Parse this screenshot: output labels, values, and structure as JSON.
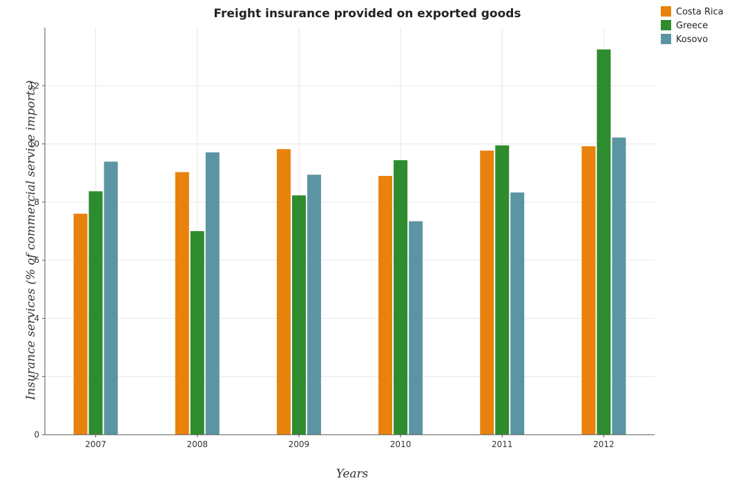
{
  "chart_data": {
    "type": "bar",
    "title": "Freight insurance provided on exported goods",
    "xlabel": "Years",
    "ylabel": "Insurance services (% of commercial service imports)",
    "categories": [
      "2007",
      "2008",
      "2009",
      "2010",
      "2011",
      "2012"
    ],
    "series": [
      {
        "name": "Costa Rica",
        "color": "#e8820c",
        "values": [
          7.6,
          9.03,
          9.82,
          8.9,
          9.77,
          9.92
        ]
      },
      {
        "name": "Greece",
        "color": "#2e8b2e",
        "values": [
          8.37,
          7.0,
          8.23,
          9.44,
          9.95,
          13.25
        ]
      },
      {
        "name": "Kosovo",
        "color": "#5b95a3",
        "values": [
          9.39,
          9.71,
          8.94,
          7.34,
          8.33,
          10.22
        ]
      }
    ],
    "ylim": [
      0,
      14
    ],
    "yticks": [
      0,
      2,
      4,
      6,
      8,
      10,
      12
    ],
    "grid": true,
    "legend_position": "top-right"
  }
}
